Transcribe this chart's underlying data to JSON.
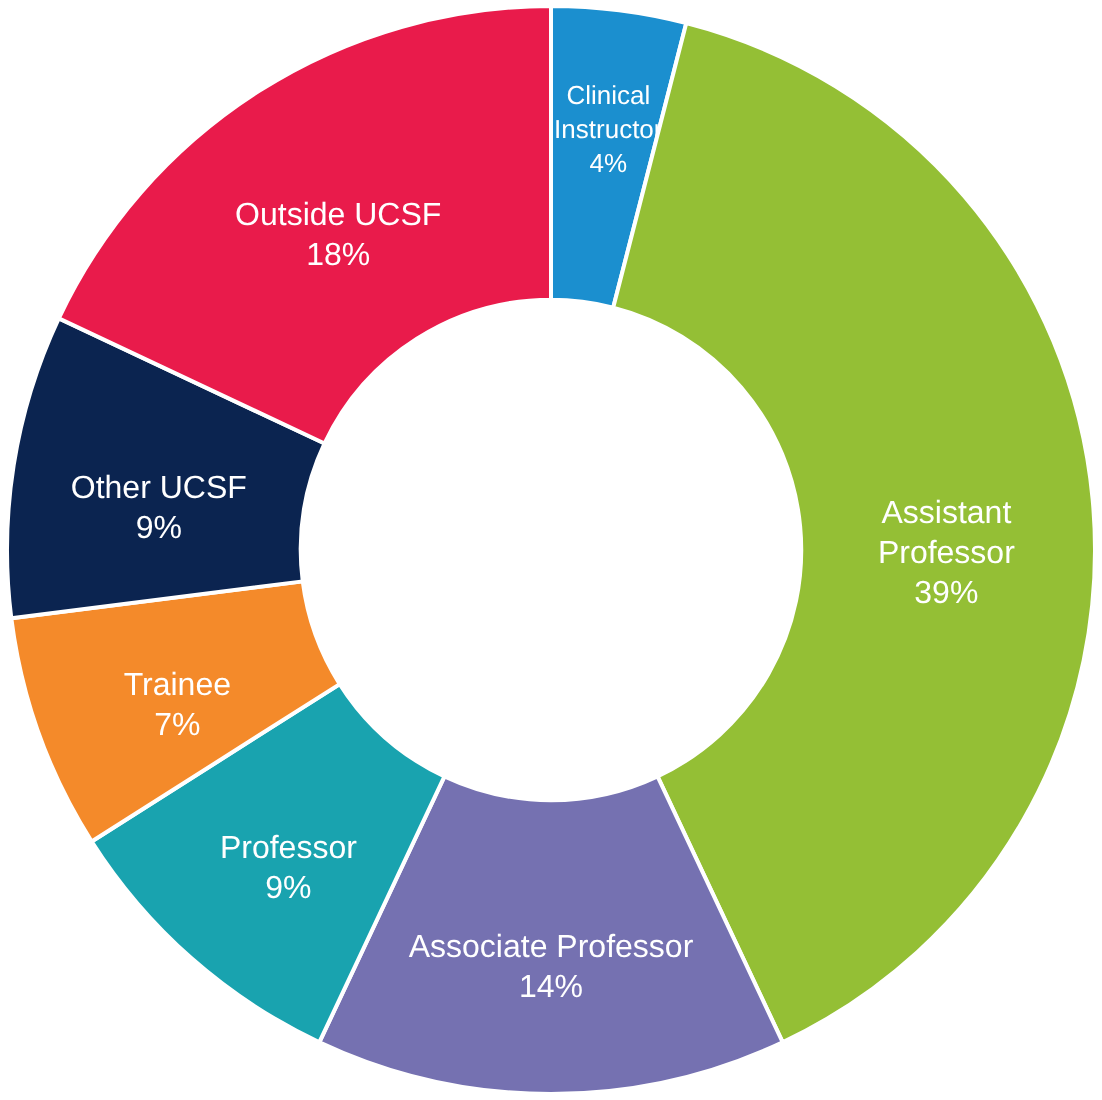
{
  "chart_data": {
    "type": "donut",
    "categories": [
      "Clinical Instructor",
      "Assistant Professor",
      "Associate Professor",
      "Professor",
      "Trainee",
      "Other UCSF",
      "Outside UCSF"
    ],
    "values": [
      4,
      39,
      14,
      9,
      7,
      9,
      18
    ],
    "colors": [
      "#1b8fcf",
      "#94bf35",
      "#7571b1",
      "#19a3af",
      "#f48a2a",
      "#0b2450",
      "#e91b4b"
    ],
    "value_labels": [
      "4%",
      "39%",
      "14%",
      "9%",
      "7%",
      "9%",
      "18%"
    ]
  }
}
